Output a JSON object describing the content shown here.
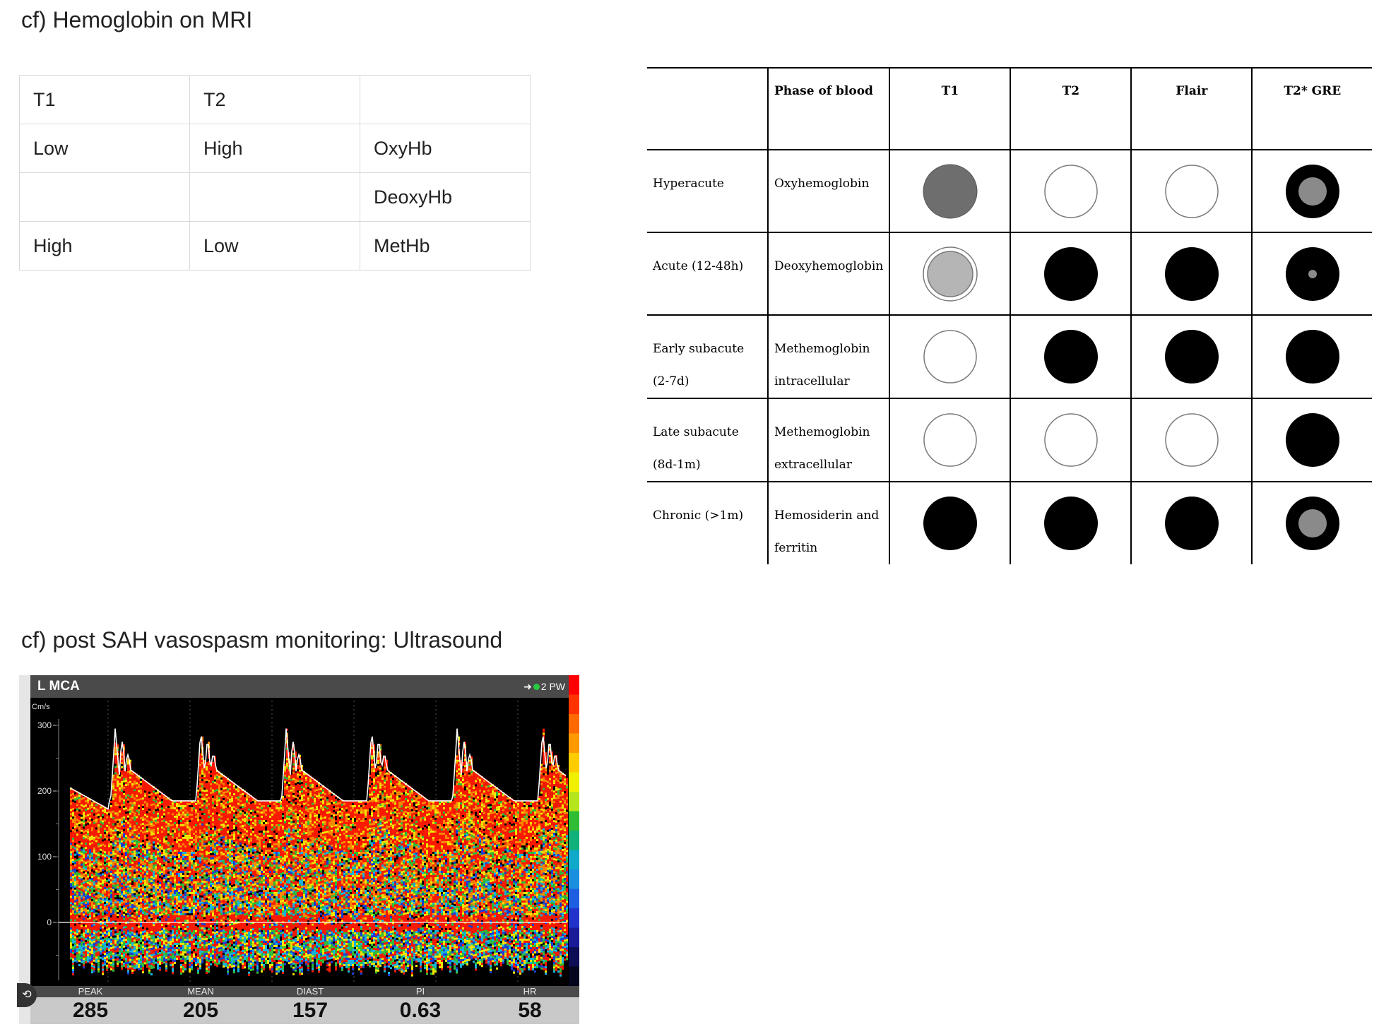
{
  "headings": {
    "mri": "cf) Hemoglobin on MRI",
    "ultrasound": "cf) post SAH vasospasm monitoring: Ultrasound"
  },
  "simple_table": {
    "rows": [
      [
        "T1",
        "T2",
        ""
      ],
      [
        "Low",
        "High",
        "OxyHb"
      ],
      [
        "",
        "",
        "DeoxyHb"
      ],
      [
        "High",
        "Low",
        "MetHb"
      ]
    ]
  },
  "mri_table": {
    "headers": [
      "",
      "Phase of blood",
      "T1",
      "T2",
      "Flair",
      "T2* GRE"
    ],
    "rows": [
      {
        "stage": "Hyperacute",
        "phase": "Oxyhemoglobin",
        "signals": [
          "gray",
          "white",
          "white",
          "black-gray-center"
        ]
      },
      {
        "stage": "Acute (12-48h)",
        "phase": "Deoxyhemoglobin",
        "signals": [
          "light-gray-ring",
          "black",
          "black",
          "black-small-dot"
        ]
      },
      {
        "stage": "Early subacute (2-7d)",
        "phase": "Methemoglobin intracellular",
        "signals": [
          "white",
          "black",
          "black",
          "black"
        ]
      },
      {
        "stage": "Late subacute (8d-1m)",
        "phase": "Methemoglobin extracellular",
        "signals": [
          "white",
          "white",
          "white",
          "black"
        ]
      },
      {
        "stage": "Chronic (>1m)",
        "phase": "Hemosiderin and ferritin",
        "signals": [
          "black",
          "black",
          "black",
          "black-gray-center"
        ]
      }
    ]
  },
  "ultrasound": {
    "vessel": "L MCA",
    "mode": "2 PW",
    "units": "Cm/s",
    "y_ticks": [
      "300",
      "200",
      "100",
      "0"
    ],
    "stats": [
      {
        "label": "PEAK",
        "value": "285"
      },
      {
        "label": "MEAN",
        "value": "205"
      },
      {
        "label": "DIAST",
        "value": "157"
      },
      {
        "label": "PI",
        "value": "0.63"
      },
      {
        "label": "HR",
        "value": "58"
      }
    ],
    "colors": {
      "red": "#ff1a00",
      "orange": "#ff8a00",
      "yellow": "#f5e800",
      "green": "#2fbf3a",
      "cyan": "#18b6e0",
      "blue": "#1a3fd8"
    }
  }
}
